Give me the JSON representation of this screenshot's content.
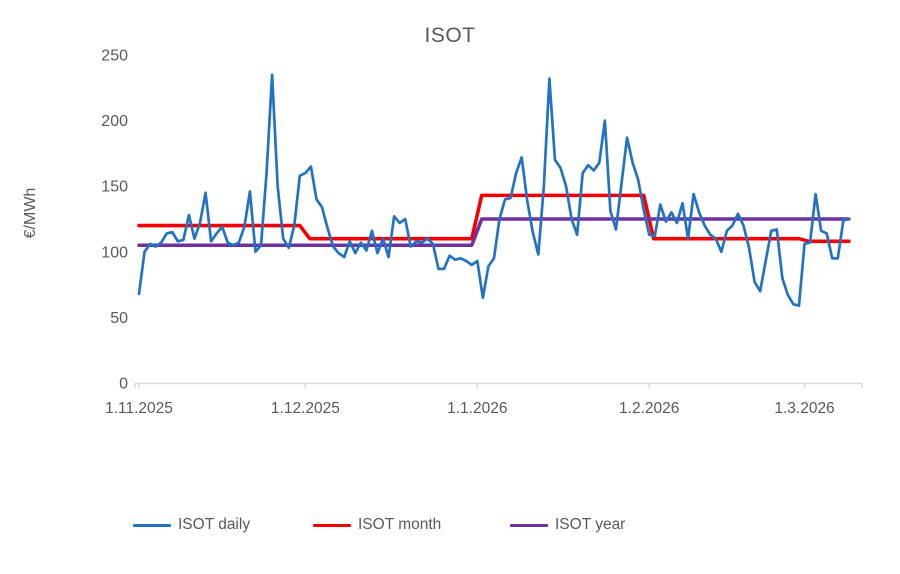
{
  "chart_data": {
    "type": "line",
    "title": "ISOT",
    "ylabel": "€/MWh",
    "ylim": [
      0,
      250
    ],
    "yticks": [
      0,
      50,
      100,
      150,
      200,
      250
    ],
    "grid": false,
    "legend_position": "bottom",
    "x_start_date": "1.11.2025",
    "x_tick_labels": [
      "1.11.2025",
      "1.12.2025",
      "1.1.2026",
      "1.2.2026",
      "1.3.2026"
    ],
    "x_tick_day_index": [
      0,
      30,
      61,
      92,
      120
    ],
    "total_days": 129,
    "series": [
      {
        "name": "ISOT daily",
        "color": "#2273C3",
        "kind": "daily",
        "values": [
          68,
          100,
          106,
          104,
          107,
          114,
          115,
          108,
          109,
          128,
          110,
          122,
          145,
          108,
          114,
          119,
          107,
          105,
          107,
          119,
          146,
          100,
          105,
          160,
          235,
          150,
          110,
          103,
          120,
          158,
          160,
          165,
          140,
          134,
          118,
          104,
          99,
          96,
          108,
          99,
          107,
          101,
          116,
          99,
          110,
          96,
          127,
          122,
          125,
          104,
          108,
          107,
          110,
          106,
          87,
          87,
          97,
          94,
          95,
          93,
          90,
          93,
          65,
          89,
          95,
          125,
          140,
          141,
          160,
          172,
          139,
          115,
          98,
          150,
          232,
          170,
          164,
          150,
          125,
          113,
          160,
          166,
          162,
          168,
          200,
          131,
          117,
          152,
          187,
          168,
          155,
          132,
          113,
          112,
          136,
          123,
          130,
          122,
          137,
          110,
          144,
          130,
          120,
          113,
          110,
          100,
          116,
          120,
          129,
          120,
          103,
          77,
          70,
          93,
          116,
          117,
          80,
          67,
          60,
          59,
          106,
          107,
          144,
          116,
          114,
          95,
          95,
          124,
          125
        ]
      },
      {
        "name": "ISOT month",
        "color": "#F50000",
        "kind": "step",
        "steps": [
          {
            "label": "11.2025",
            "from_day": 0,
            "to_day": 30,
            "value": 120
          },
          {
            "label": "12.2025",
            "from_day": 30,
            "to_day": 61,
            "value": 110
          },
          {
            "label": "1.2026",
            "from_day": 61,
            "to_day": 92,
            "value": 143
          },
          {
            "label": "2.2026",
            "from_day": 92,
            "to_day": 120,
            "value": 110
          },
          {
            "label": "3.2026",
            "from_day": 120,
            "to_day": 128,
            "value": 108
          }
        ]
      },
      {
        "name": "ISOT year",
        "color": "#7030A0",
        "kind": "step",
        "steps": [
          {
            "label": "2025",
            "from_day": 0,
            "to_day": 61,
            "value": 105
          },
          {
            "label": "2026",
            "from_day": 61,
            "to_day": 128,
            "value": 125
          }
        ]
      }
    ],
    "axis_color": "#D9D9D9",
    "text_color": "#595959"
  }
}
